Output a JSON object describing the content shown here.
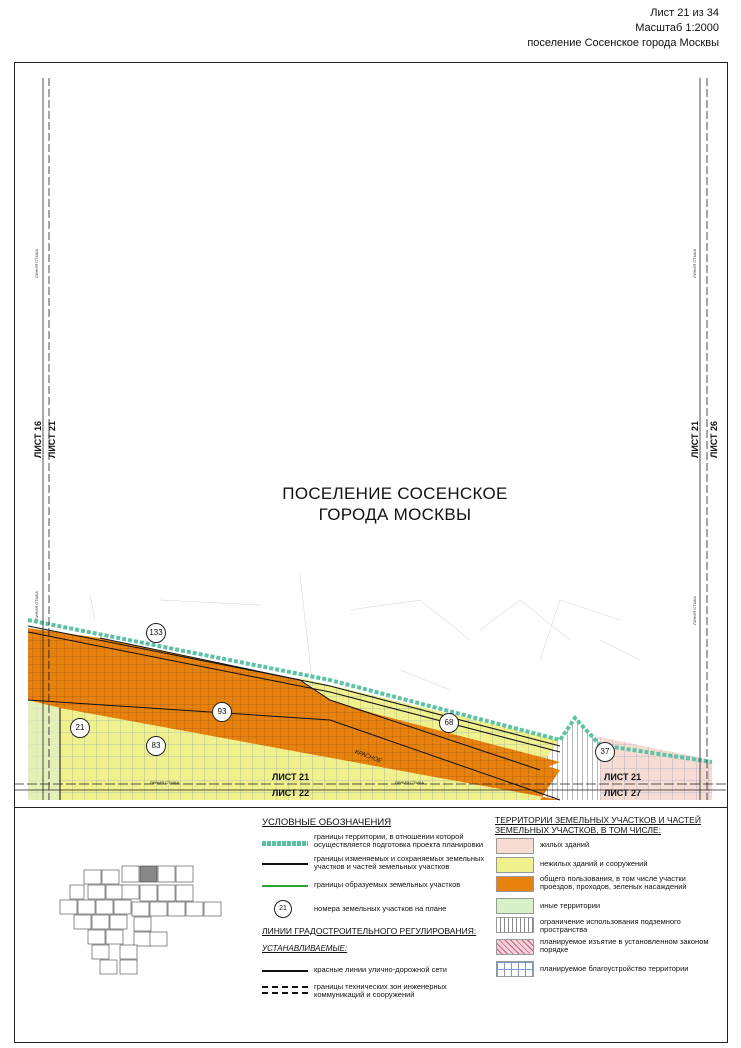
{
  "sheet": {
    "number_line": "Лист 21 из 34",
    "scale_line": "Масштаб 1:2000",
    "place_line": "поселение Сосенское города Москвы"
  },
  "map": {
    "title_line1": "ПОСЕЛЕНИЕ СОСЕНСКОЕ",
    "title_line2": "ГОРОДА МОСКВЫ",
    "edge_labels": {
      "left_outer": "ЛИСТ 16",
      "left_inner": "ЛИСТ 21",
      "right_inner": "ЛИСТ 21",
      "right_outer": "ЛИСТ 26",
      "bottom_upper": "ЛИСТ 21",
      "bottom_lower": "ЛИСТ 22",
      "bottom_right_upper": "ЛИСТ 21",
      "bottom_right_lower": "ЛИСТ 27"
    },
    "seam_line_label": "ЛИНИЯ СТЫКА",
    "parcels": [
      "133",
      "21",
      "93",
      "83",
      "68",
      "37"
    ],
    "street_label": "КРАСНОЕ"
  },
  "legend": {
    "title": "УСЛОВНЫЕ ОБОЗНАЧЕНИЯ",
    "items": [
      "границы территории, в отношении которой осуществляется подготовка проекта планировки",
      "границы изменяемых и сохраняемых земельных участков и частей земельных участков",
      "границы образуемых земельных участков",
      "номера земельных участков на плане"
    ],
    "parcel_example": "21",
    "regulation_title": "ЛИНИИ ГРАДОСТРОИТЕЛЬНОГО РЕГУЛИРОВАНИЯ:",
    "established_title": "УСТАНАВЛИВАЕМЫЕ:",
    "regulation_items": [
      "красные линии улично-дорожной сети",
      "границы технических зон инженерных коммуникаций и сооружений"
    ],
    "territory_title": "ТЕРРИТОРИИ ЗЕМЕЛЬНЫХ УЧАСТКОВ И ЧАСТЕЙ ЗЕМЕЛЬНЫХ УЧАСТКОВ, В ТОМ ЧИСЛЕ:",
    "territory_items": [
      "жилых зданий",
      "нежилых зданий и сооружений",
      "общего пользования, в том числе участки проездов, проходов, зеленых насаждений",
      "иные территории",
      "ограничение использования подземного пространства",
      "планируемое изъятие в установленном законом порядке",
      "планируемое благоустройство территории"
    ],
    "colors": {
      "residential": "#f7dcd3",
      "nonresidential": "#f0f08c",
      "public": "#e8820f",
      "other": "#d8f0c8",
      "underground": "#ffffff",
      "withdrawal": "#f0c0c8",
      "improvement": "#ffffff",
      "boundary": "#58c0a0",
      "new_boundary": "#30a030"
    }
  },
  "index_map": {
    "sheets": [
      "16",
      "21",
      "26",
      "22",
      "27",
      "15",
      "20",
      "25",
      "10",
      "14",
      "19",
      "24",
      "30",
      "31",
      "32",
      "33",
      "34",
      "4",
      "5",
      "9",
      "13",
      "18",
      "23",
      "29",
      "3",
      "8",
      "12",
      "17",
      "28",
      "2",
      "7",
      "11",
      "1",
      "6"
    ],
    "current": "21"
  }
}
